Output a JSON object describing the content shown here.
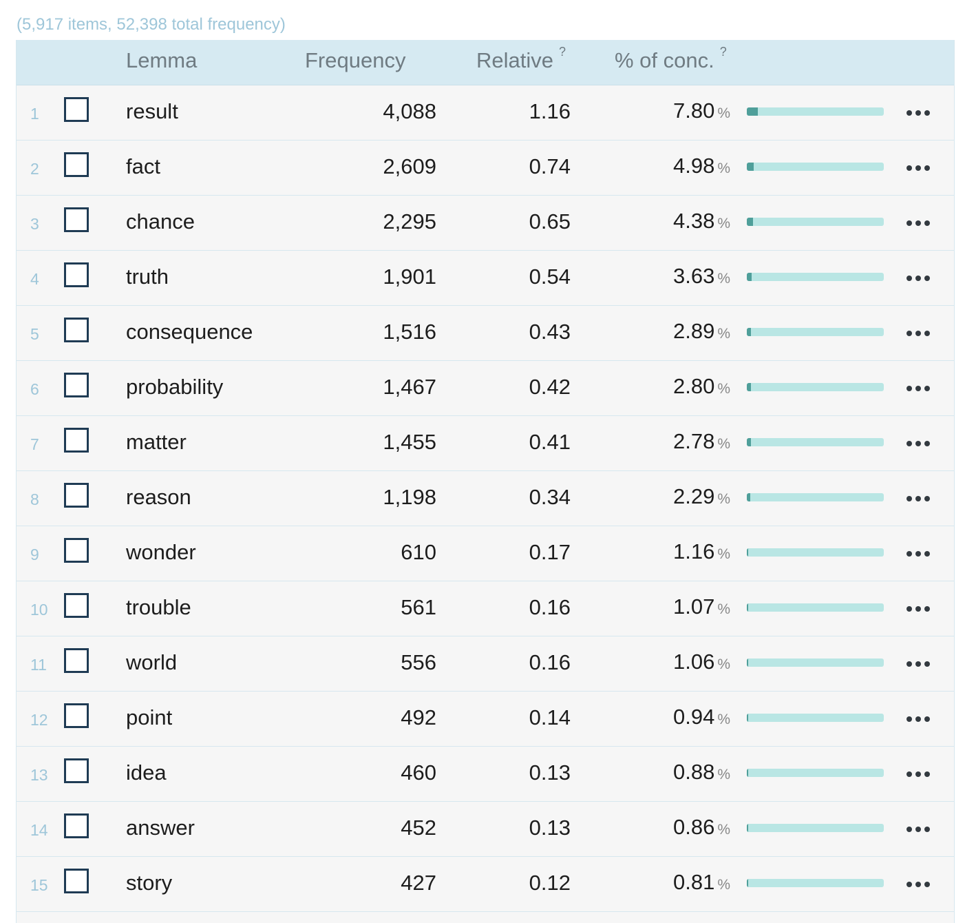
{
  "summary": "(5,917 items, 52,398 total frequency)",
  "columns": {
    "lemma": "Lemma",
    "frequency": "Frequency",
    "relative": "Relative",
    "relative_help": "?",
    "conc": "% of conc.",
    "conc_help": "?"
  },
  "percent_sign": "%",
  "rows": [
    {
      "index": "1",
      "lemma": "result",
      "frequency": "4,088",
      "relative": "1.16",
      "conc": "7.80",
      "bar_fraction": 0.078
    },
    {
      "index": "2",
      "lemma": "fact",
      "frequency": "2,609",
      "relative": "0.74",
      "conc": "4.98",
      "bar_fraction": 0.0498
    },
    {
      "index": "3",
      "lemma": "chance",
      "frequency": "2,295",
      "relative": "0.65",
      "conc": "4.38",
      "bar_fraction": 0.0438
    },
    {
      "index": "4",
      "lemma": "truth",
      "frequency": "1,901",
      "relative": "0.54",
      "conc": "3.63",
      "bar_fraction": 0.0363
    },
    {
      "index": "5",
      "lemma": "consequence",
      "frequency": "1,516",
      "relative": "0.43",
      "conc": "2.89",
      "bar_fraction": 0.0289
    },
    {
      "index": "6",
      "lemma": "probability",
      "frequency": "1,467",
      "relative": "0.42",
      "conc": "2.80",
      "bar_fraction": 0.028
    },
    {
      "index": "7",
      "lemma": "matter",
      "frequency": "1,455",
      "relative": "0.41",
      "conc": "2.78",
      "bar_fraction": 0.0278
    },
    {
      "index": "8",
      "lemma": "reason",
      "frequency": "1,198",
      "relative": "0.34",
      "conc": "2.29",
      "bar_fraction": 0.0229
    },
    {
      "index": "9",
      "lemma": "wonder",
      "frequency": "610",
      "relative": "0.17",
      "conc": "1.16",
      "bar_fraction": 0.0116
    },
    {
      "index": "10",
      "lemma": "trouble",
      "frequency": "561",
      "relative": "0.16",
      "conc": "1.07",
      "bar_fraction": 0.0107
    },
    {
      "index": "11",
      "lemma": "world",
      "frequency": "556",
      "relative": "0.16",
      "conc": "1.06",
      "bar_fraction": 0.0106
    },
    {
      "index": "12",
      "lemma": "point",
      "frequency": "492",
      "relative": "0.14",
      "conc": "0.94",
      "bar_fraction": 0.0094
    },
    {
      "index": "13",
      "lemma": "idea",
      "frequency": "460",
      "relative": "0.13",
      "conc": "0.88",
      "bar_fraction": 0.0088
    },
    {
      "index": "14",
      "lemma": "answer",
      "frequency": "452",
      "relative": "0.13",
      "conc": "0.86",
      "bar_fraction": 0.0086
    },
    {
      "index": "15",
      "lemma": "story",
      "frequency": "427",
      "relative": "0.12",
      "conc": "0.81",
      "bar_fraction": 0.0081
    }
  ],
  "colors": {
    "header_bg": "#d6eaf2",
    "row_bg": "#f6f6f6",
    "bar_track": "#b9e6e4",
    "bar_fill": "#4f9f9a",
    "checkbox_border": "#1f3b54",
    "index_text": "#9ec6d9"
  },
  "icons": {
    "row_menu": "more-dots-icon",
    "help": "question-mark-icon"
  }
}
